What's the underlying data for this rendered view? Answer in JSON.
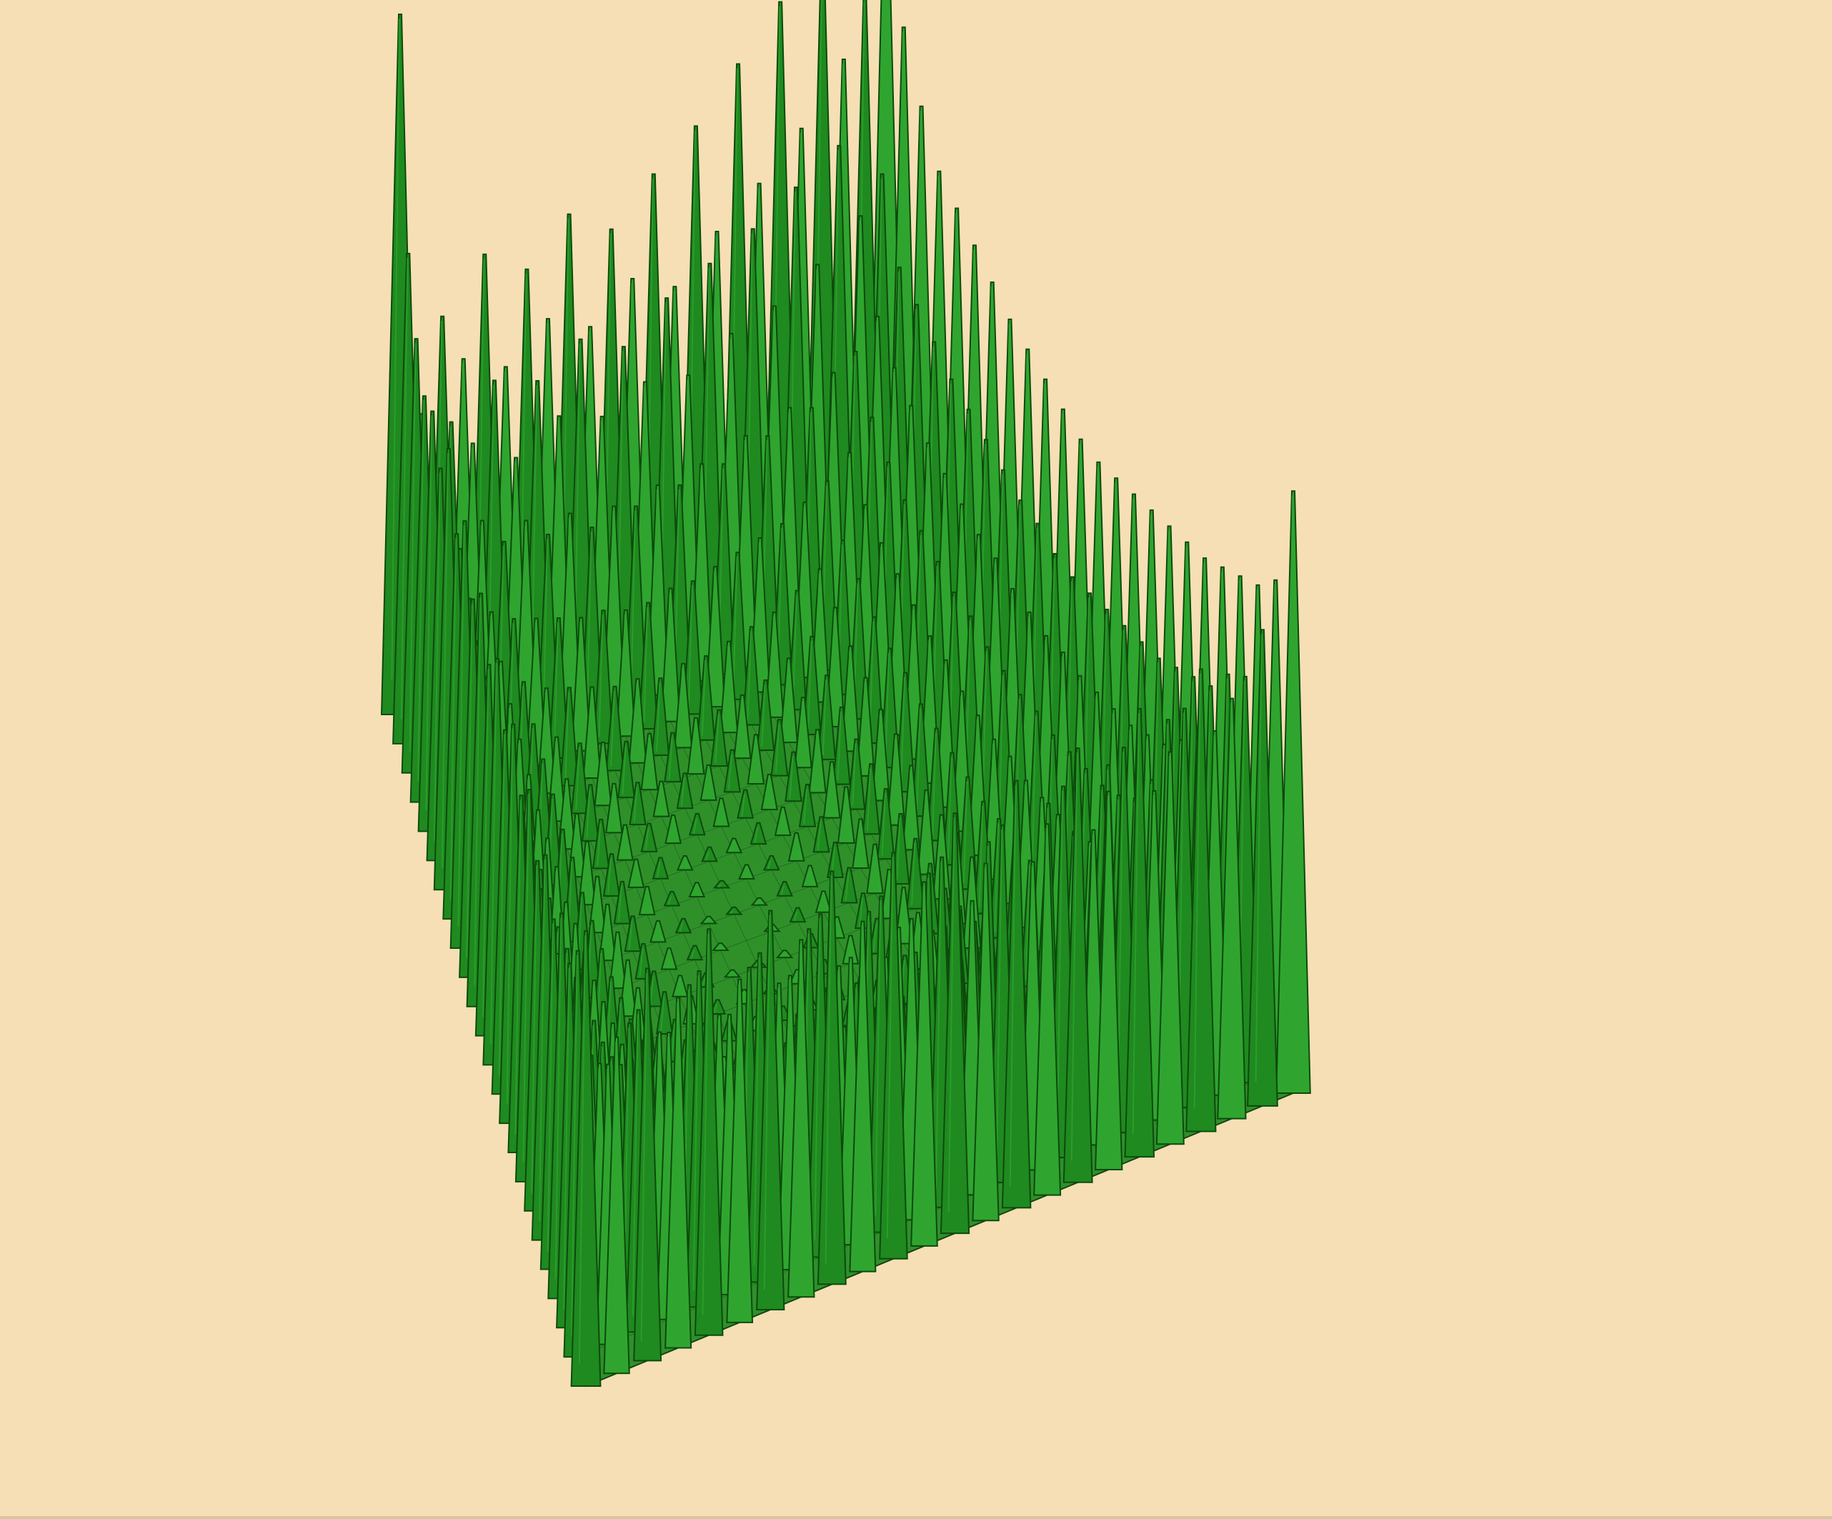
{
  "chart_data": {
    "type": "surface",
    "title": "",
    "xlabel": "",
    "ylabel": "",
    "zlabel": "",
    "grid": false,
    "legend": "none",
    "axes_visible": false,
    "colors": {
      "background": "#f6dfb5",
      "surface": "#1f8a1f",
      "surface_light": "#2fa52f",
      "surface_dark": "#0c4a0c",
      "mesh": "#083808"
    },
    "grid_size": 24,
    "shape": "bowl: low near the centre, rising towards the rim, tallest at the left and top corners",
    "surface_z": [
      [
        1.0,
        0.42,
        0.55,
        0.48,
        0.62,
        0.45,
        0.58,
        0.5,
        0.64,
        0.47,
        0.6,
        0.52,
        0.66,
        0.49,
        0.71,
        0.55,
        0.78,
        0.6,
        0.85,
        0.66,
        0.9,
        0.74,
        0.82,
        1.0
      ],
      [
        0.7,
        0.38,
        0.44,
        0.4,
        0.48,
        0.36,
        0.46,
        0.4,
        0.5,
        0.38,
        0.47,
        0.41,
        0.52,
        0.4,
        0.55,
        0.44,
        0.58,
        0.46,
        0.62,
        0.5,
        0.66,
        0.55,
        0.6,
        0.8
      ],
      [
        0.62,
        0.35,
        0.3,
        0.33,
        0.29,
        0.31,
        0.28,
        0.3,
        0.27,
        0.29,
        0.28,
        0.3,
        0.29,
        0.31,
        0.3,
        0.33,
        0.32,
        0.35,
        0.34,
        0.38,
        0.4,
        0.44,
        0.5,
        0.72
      ],
      [
        0.58,
        0.33,
        0.27,
        0.24,
        0.22,
        0.21,
        0.2,
        0.19,
        0.19,
        0.18,
        0.18,
        0.19,
        0.19,
        0.2,
        0.21,
        0.22,
        0.23,
        0.25,
        0.27,
        0.3,
        0.34,
        0.4,
        0.48,
        0.66
      ],
      [
        0.6,
        0.34,
        0.25,
        0.21,
        0.17,
        0.15,
        0.14,
        0.13,
        0.12,
        0.12,
        0.11,
        0.12,
        0.12,
        0.13,
        0.14,
        0.15,
        0.17,
        0.19,
        0.22,
        0.26,
        0.31,
        0.38,
        0.46,
        0.64
      ],
      [
        0.56,
        0.32,
        0.24,
        0.19,
        0.15,
        0.12,
        0.1,
        0.09,
        0.08,
        0.08,
        0.07,
        0.08,
        0.08,
        0.09,
        0.1,
        0.12,
        0.14,
        0.17,
        0.2,
        0.24,
        0.29,
        0.36,
        0.44,
        0.62
      ],
      [
        0.63,
        0.35,
        0.23,
        0.18,
        0.14,
        0.1,
        0.08,
        0.07,
        0.06,
        0.05,
        0.05,
        0.05,
        0.06,
        0.07,
        0.08,
        0.1,
        0.12,
        0.15,
        0.18,
        0.23,
        0.28,
        0.35,
        0.43,
        0.6
      ],
      [
        0.55,
        0.31,
        0.22,
        0.17,
        0.13,
        0.09,
        0.07,
        0.05,
        0.04,
        0.04,
        0.03,
        0.04,
        0.04,
        0.05,
        0.07,
        0.09,
        0.11,
        0.14,
        0.17,
        0.22,
        0.27,
        0.34,
        0.42,
        0.58
      ],
      [
        0.61,
        0.34,
        0.22,
        0.16,
        0.12,
        0.09,
        0.06,
        0.04,
        0.03,
        0.02,
        0.02,
        0.02,
        0.03,
        0.04,
        0.06,
        0.08,
        0.1,
        0.13,
        0.17,
        0.21,
        0.26,
        0.33,
        0.41,
        0.57
      ],
      [
        0.54,
        0.3,
        0.21,
        0.16,
        0.12,
        0.08,
        0.06,
        0.04,
        0.02,
        0.02,
        0.01,
        0.02,
        0.02,
        0.04,
        0.05,
        0.08,
        0.1,
        0.13,
        0.16,
        0.21,
        0.26,
        0.33,
        0.4,
        0.56
      ],
      [
        0.59,
        0.33,
        0.21,
        0.16,
        0.11,
        0.08,
        0.05,
        0.03,
        0.02,
        0.01,
        0.01,
        0.01,
        0.02,
        0.03,
        0.05,
        0.07,
        0.1,
        0.12,
        0.16,
        0.2,
        0.25,
        0.32,
        0.4,
        0.55
      ],
      [
        0.53,
        0.3,
        0.21,
        0.15,
        0.11,
        0.08,
        0.05,
        0.03,
        0.02,
        0.01,
        0.0,
        0.01,
        0.02,
        0.03,
        0.05,
        0.07,
        0.1,
        0.12,
        0.16,
        0.2,
        0.25,
        0.32,
        0.39,
        0.54
      ],
      [
        0.58,
        0.32,
        0.21,
        0.16,
        0.11,
        0.08,
        0.05,
        0.03,
        0.02,
        0.01,
        0.01,
        0.01,
        0.02,
        0.03,
        0.05,
        0.07,
        0.1,
        0.12,
        0.16,
        0.2,
        0.25,
        0.32,
        0.39,
        0.54
      ],
      [
        0.52,
        0.29,
        0.21,
        0.16,
        0.11,
        0.08,
        0.06,
        0.04,
        0.02,
        0.02,
        0.01,
        0.02,
        0.02,
        0.04,
        0.05,
        0.08,
        0.1,
        0.13,
        0.16,
        0.21,
        0.26,
        0.33,
        0.4,
        0.55
      ],
      [
        0.57,
        0.32,
        0.22,
        0.16,
        0.12,
        0.09,
        0.06,
        0.04,
        0.03,
        0.02,
        0.02,
        0.02,
        0.03,
        0.04,
        0.06,
        0.08,
        0.1,
        0.13,
        0.17,
        0.21,
        0.26,
        0.33,
        0.41,
        0.56
      ],
      [
        0.51,
        0.29,
        0.22,
        0.17,
        0.13,
        0.09,
        0.07,
        0.05,
        0.04,
        0.04,
        0.03,
        0.04,
        0.04,
        0.05,
        0.07,
        0.09,
        0.11,
        0.14,
        0.17,
        0.22,
        0.27,
        0.34,
        0.42,
        0.57
      ],
      [
        0.56,
        0.31,
        0.23,
        0.18,
        0.14,
        0.1,
        0.08,
        0.07,
        0.06,
        0.05,
        0.05,
        0.05,
        0.06,
        0.07,
        0.08,
        0.1,
        0.12,
        0.15,
        0.18,
        0.23,
        0.28,
        0.35,
        0.43,
        0.58
      ],
      [
        0.5,
        0.29,
        0.24,
        0.19,
        0.15,
        0.12,
        0.1,
        0.09,
        0.08,
        0.08,
        0.07,
        0.08,
        0.08,
        0.09,
        0.1,
        0.12,
        0.14,
        0.17,
        0.2,
        0.24,
        0.29,
        0.36,
        0.44,
        0.59
      ],
      [
        0.55,
        0.31,
        0.25,
        0.21,
        0.17,
        0.15,
        0.14,
        0.13,
        0.12,
        0.12,
        0.11,
        0.12,
        0.12,
        0.13,
        0.14,
        0.15,
        0.17,
        0.19,
        0.22,
        0.26,
        0.31,
        0.38,
        0.46,
        0.6
      ],
      [
        0.5,
        0.3,
        0.27,
        0.24,
        0.22,
        0.21,
        0.2,
        0.19,
        0.19,
        0.18,
        0.18,
        0.19,
        0.19,
        0.2,
        0.21,
        0.22,
        0.23,
        0.25,
        0.27,
        0.3,
        0.34,
        0.4,
        0.48,
        0.62
      ],
      [
        0.55,
        0.33,
        0.3,
        0.33,
        0.29,
        0.31,
        0.28,
        0.3,
        0.27,
        0.29,
        0.28,
        0.3,
        0.29,
        0.31,
        0.3,
        0.33,
        0.32,
        0.35,
        0.34,
        0.38,
        0.4,
        0.44,
        0.5,
        0.64
      ],
      [
        0.52,
        0.36,
        0.4,
        0.37,
        0.42,
        0.36,
        0.41,
        0.37,
        0.43,
        0.36,
        0.42,
        0.38,
        0.44,
        0.37,
        0.45,
        0.39,
        0.47,
        0.41,
        0.49,
        0.43,
        0.52,
        0.48,
        0.55,
        0.66
      ],
      [
        0.58,
        0.4,
        0.46,
        0.41,
        0.48,
        0.4,
        0.47,
        0.42,
        0.49,
        0.41,
        0.48,
        0.43,
        0.5,
        0.42,
        0.51,
        0.44,
        0.53,
        0.45,
        0.55,
        0.47,
        0.57,
        0.52,
        0.58,
        0.7
      ],
      [
        0.65,
        0.48,
        0.56,
        0.5,
        0.58,
        0.49,
        0.57,
        0.51,
        0.59,
        0.5,
        0.58,
        0.52,
        0.6,
        0.51,
        0.61,
        0.53,
        0.62,
        0.54,
        0.64,
        0.56,
        0.66,
        0.6,
        0.68,
        0.86
      ]
    ]
  }
}
